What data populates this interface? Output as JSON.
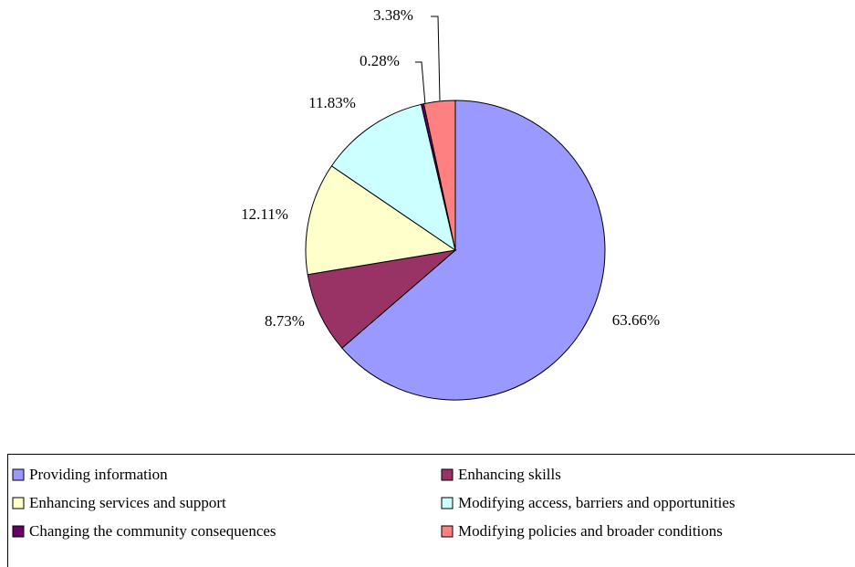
{
  "chart_data": {
    "type": "pie",
    "categories": [
      "Providing information",
      "Enhancing skills",
      "Enhancing services and support",
      "Modifying access, barriers and opportunities",
      "Changing the community consequences",
      "Modifying policies and broader conditions"
    ],
    "values": [
      63.66,
      8.73,
      12.11,
      11.83,
      0.28,
      3.38
    ],
    "value_labels": [
      "63.66%",
      "8.73%",
      "12.11%",
      "11.83%",
      "0.28%",
      "3.38%"
    ],
    "colors": [
      "#9999ff",
      "#993366",
      "#ffffcc",
      "#ccffff",
      "#660066",
      "#ff8080"
    ],
    "legend": "bottom"
  }
}
